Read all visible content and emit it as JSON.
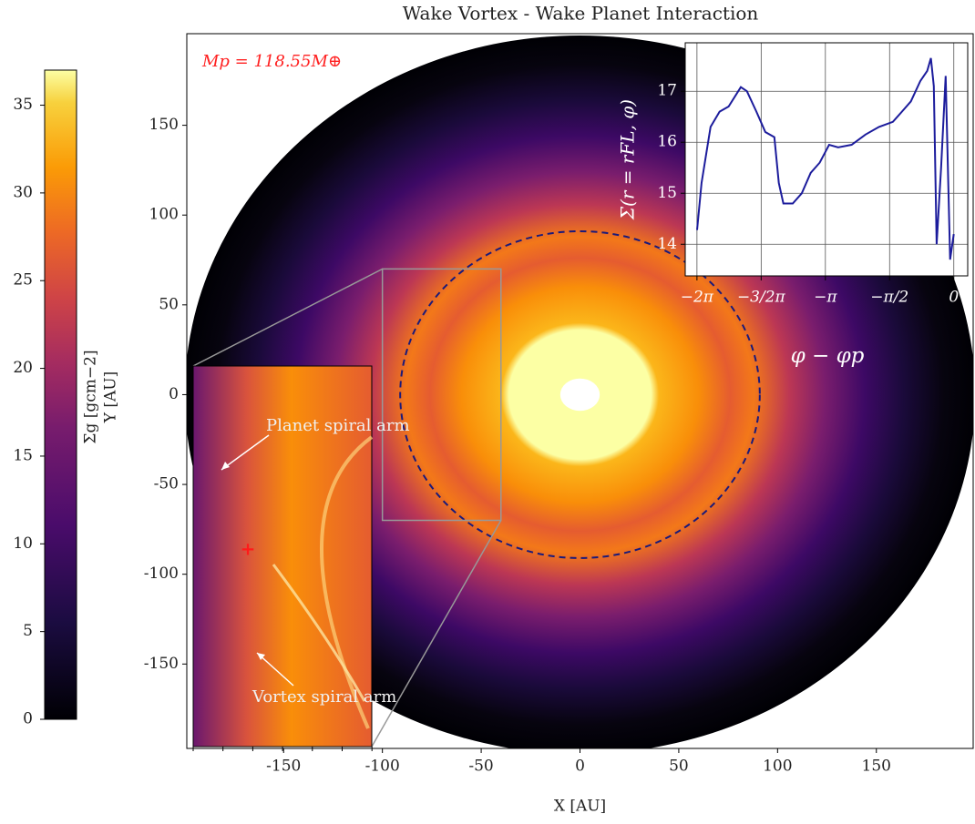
{
  "chart_data": [
    {
      "type": "heatmap",
      "title": "Wake Vortex - Wake Planet Interaction",
      "xlabel": "X [AU]",
      "ylabel": "Y [AU]",
      "xlim": [
        -199,
        199
      ],
      "ylim": [
        -197,
        201
      ],
      "xticks": [
        -150,
        -100,
        -50,
        0,
        50,
        100,
        150
      ],
      "yticks": [
        -150,
        -100,
        -50,
        0,
        50,
        100,
        150
      ],
      "colorbar": {
        "label": "Σg [gcm−2]",
        "lim": [
          0,
          37
        ],
        "ticks": [
          0,
          5,
          10,
          15,
          20,
          25,
          30,
          35
        ]
      },
      "annotations": [
        "Mp = 118.55M⊕",
        "Planet spiral arm",
        "Vortex spiral arm"
      ],
      "dashed_circle_radius": 91,
      "zoom_region": {
        "xlim": [
          -100,
          -40
        ],
        "ylim": [
          -70,
          70
        ]
      }
    },
    {
      "type": "line",
      "xlabel": "φ − φp",
      "ylabel": "Σ(r = rFL, φ)",
      "color": "#1c1c9c",
      "grid": true,
      "xlim": [
        -6.57,
        0.34
      ],
      "ylim": [
        13.38,
        17.95
      ],
      "xticks": [
        {
          "value": -6.2832,
          "label": "−2π"
        },
        {
          "value": -4.7124,
          "label": "−3/2π"
        },
        {
          "value": -3.1416,
          "label": "−π"
        },
        {
          "value": -1.5708,
          "label": "−π/2"
        },
        {
          "value": 0,
          "label": "0"
        }
      ],
      "yticks": [
        14,
        15,
        16,
        17
      ],
      "x": [
        -6.28,
        -6.17,
        -5.95,
        -5.73,
        -5.51,
        -5.21,
        -5.06,
        -4.83,
        -4.61,
        -4.39,
        -4.28,
        -4.17,
        -3.94,
        -3.72,
        -3.5,
        -3.28,
        -3.05,
        -2.83,
        -2.5,
        -2.16,
        -1.83,
        -1.49,
        -1.27,
        -1.05,
        -0.82,
        -0.65,
        -0.56,
        -0.49,
        -0.42,
        -0.31,
        -0.2,
        -0.09,
        0
      ],
      "values": [
        14.28,
        15.2,
        16.3,
        16.6,
        16.7,
        17.08,
        17.0,
        16.6,
        16.2,
        16.1,
        15.2,
        14.8,
        14.8,
        15.0,
        15.4,
        15.6,
        15.95,
        15.9,
        15.95,
        16.15,
        16.3,
        16.4,
        16.6,
        16.8,
        17.2,
        17.4,
        17.65,
        17.1,
        14.0,
        15.5,
        17.3,
        13.7,
        14.2
      ]
    }
  ]
}
